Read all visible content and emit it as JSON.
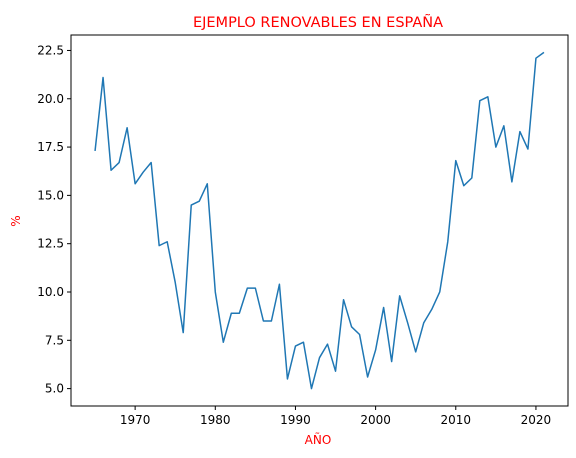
{
  "colors": {
    "title": "#ff0000",
    "axis_label": "#ff0000",
    "line": "#1f77b4",
    "axes": "#000000"
  },
  "chart_data": {
    "type": "line",
    "title": "EJEMPLO RENOVABLES EN ESPAÑA",
    "xlabel": "AÑO",
    "ylabel": "%",
    "xlim": [
      1962,
      2024
    ],
    "ylim": [
      4.1,
      23.3
    ],
    "grid": false,
    "legend": "none",
    "xticks": [
      1970,
      1980,
      1990,
      2000,
      2010,
      2020
    ],
    "yticks": [
      5.0,
      7.5,
      10.0,
      12.5,
      15.0,
      17.5,
      20.0,
      22.5
    ],
    "xtick_labels": [
      "1970",
      "1980",
      "1990",
      "2000",
      "2010",
      "2020"
    ],
    "ytick_labels": [
      "5.0",
      "7.5",
      "10.0",
      "12.5",
      "15.0",
      "17.5",
      "20.0",
      "22.5"
    ],
    "series": [
      {
        "x": [
          1965,
          1966,
          1967,
          1968,
          1969,
          1970,
          1971,
          1972,
          1973,
          1974,
          1975,
          1976,
          1977,
          1978,
          1979,
          1980,
          1981,
          1982,
          1983,
          1984,
          1985,
          1986,
          1987,
          1988,
          1989,
          1990,
          1991,
          1992,
          1993,
          1994,
          1995,
          1996,
          1997,
          1998,
          1999,
          2000,
          2001,
          2002,
          2003,
          2004,
          2005,
          2006,
          2007,
          2008,
          2009,
          2010,
          2011,
          2012,
          2013,
          2014,
          2015,
          2016,
          2017,
          2018,
          2019,
          2020,
          2021
        ],
        "y": [
          17.3,
          21.1,
          16.3,
          16.7,
          18.5,
          15.6,
          16.2,
          16.7,
          12.4,
          12.6,
          10.5,
          7.9,
          14.5,
          14.7,
          15.6,
          10.0,
          7.4,
          8.9,
          8.9,
          10.2,
          10.2,
          8.5,
          8.5,
          10.4,
          5.5,
          7.2,
          7.4,
          5.0,
          6.6,
          7.3,
          5.9,
          9.6,
          8.2,
          7.8,
          5.6,
          7.0,
          9.2,
          6.4,
          9.8,
          8.4,
          6.9,
          8.4,
          9.1,
          10.0,
          12.6,
          16.8,
          15.5,
          15.9,
          19.9,
          20.1,
          17.5,
          18.6,
          15.7,
          18.3,
          17.4,
          22.1,
          22.4
        ]
      }
    ]
  }
}
